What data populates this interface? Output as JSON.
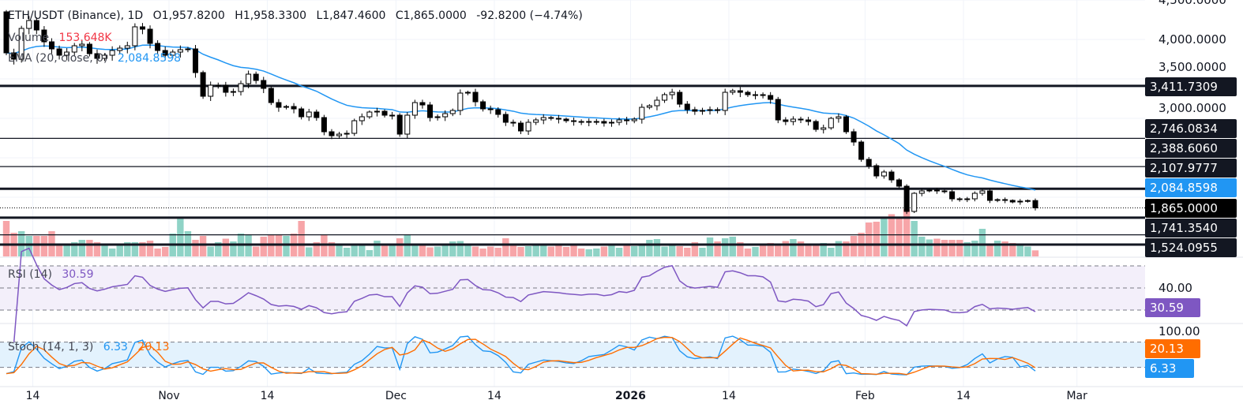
{
  "header": {
    "symbol": "ETH/USDT (Binance), 1D",
    "open": "O1,957.8200",
    "high": "H1,958.3300",
    "low": "L1,847.4600",
    "close": "C1,865.0000",
    "change": "-92.8200 (−4.74%)",
    "volume_label": "Volume",
    "volume_value": "153.648K",
    "ema_label": "EMA (20, close, 0)",
    "ema_value": "2,084.8598"
  },
  "colors": {
    "up": "#ffffff",
    "down": "#000000",
    "vol_up": "#8fd3c6",
    "vol_down": "#f7a5a8",
    "ema": "#2196f3",
    "rsi": "#7e57c2",
    "stoch_k": "#2196f3",
    "stoch_d": "#ff6d00",
    "tag": "#131722"
  },
  "price_axis": [
    "4,500.0000",
    "4,000.0000",
    "3,500.0000",
    "3,000.0000"
  ],
  "price_tags": [
    {
      "label": "3,411.7309",
      "kind": "level"
    },
    {
      "label": "2,746.0834",
      "kind": "level"
    },
    {
      "label": "2,388.6060",
      "kind": "level"
    },
    {
      "label": "2,107.9777",
      "kind": "level"
    },
    {
      "label": "2,084.8598",
      "kind": "ema"
    },
    {
      "label": "1,865.0000",
      "kind": "last"
    },
    {
      "label": "1,741.3540",
      "kind": "level"
    },
    {
      "label": "1,524.0955",
      "kind": "level"
    }
  ],
  "rsi": {
    "label": "RSI (14)",
    "value": "30.59",
    "axis": "40.00",
    "period": 14
  },
  "stoch": {
    "label": "Stoch (14, 1, 3)",
    "k_value": "6.33",
    "d_value": "20.13",
    "axis": "100.00"
  },
  "time_axis": [
    {
      "label": "14",
      "day": 4
    },
    {
      "label": "Nov",
      "day": 22
    },
    {
      "label": "14",
      "day": 35
    },
    {
      "label": "Dec",
      "day": 52
    },
    {
      "label": "14",
      "day": 65
    },
    {
      "label": "2026",
      "day": 83,
      "bold": true
    },
    {
      "label": "14",
      "day": 96
    },
    {
      "label": "Feb",
      "day": 114
    },
    {
      "label": "14",
      "day": 127
    },
    {
      "label": "Mar",
      "day": 142
    }
  ],
  "chart_data": {
    "type": "candlestick",
    "title": "ETH/USDT (Binance), 1D",
    "x_start": "2025-10-10",
    "x_end": "2026-02-23",
    "ylim": [
      1350,
      4500
    ],
    "first_open": 4350,
    "levels": [
      {
        "value": 3411.7309,
        "weight": "thick"
      },
      {
        "value": 2746.0834,
        "weight": "thin"
      },
      {
        "value": 2388.606,
        "weight": "thin"
      },
      {
        "value": 2107.9777,
        "weight": "thick"
      },
      {
        "value": 1741.354,
        "weight": "thick"
      },
      {
        "value": 1524.0955,
        "weight": "thin"
      },
      {
        "value": 1400,
        "weight": "thick"
      }
    ],
    "last_price": 1865.0,
    "ema_period": 20,
    "closes": [
      3830,
      3750,
      4140,
      4240,
      4120,
      3970,
      3880,
      3800,
      3840,
      3920,
      3940,
      3820,
      3760,
      3800,
      3860,
      3890,
      3920,
      4160,
      4130,
      3950,
      3860,
      3800,
      3840,
      3870,
      3880,
      3580,
      3280,
      3420,
      3420,
      3330,
      3340,
      3440,
      3560,
      3480,
      3380,
      3200,
      3140,
      3150,
      3120,
      3020,
      3080,
      3010,
      2830,
      2780,
      2800,
      2810,
      2970,
      3020,
      3080,
      3090,
      3040,
      3040,
      2800,
      3040,
      3200,
      3170,
      3010,
      3020,
      3060,
      3100,
      3320,
      3330,
      3210,
      3120,
      3110,
      3050,
      2950,
      2940,
      2840,
      2950,
      2980,
      3010,
      3000,
      2990,
      2970,
      2960,
      2950,
      2960,
      2960,
      2940,
      2950,
      2980,
      2970,
      2990,
      3140,
      3160,
      3230,
      3300,
      3330,
      3180,
      3110,
      3090,
      3100,
      3110,
      3100,
      3330,
      3350,
      3330,
      3300,
      3300,
      3290,
      3240,
      2980,
      2960,
      2990,
      2980,
      2960,
      2860,
      2880,
      3000,
      3020,
      2830,
      2700,
      2480,
      2400,
      2270,
      2320,
      2220,
      2140,
      1820,
      2050,
      2080,
      2090,
      2080,
      2070,
      1980,
      1970,
      1980,
      2050,
      2080,
      1960,
      1970,
      1960,
      1940,
      1950,
      1957.82,
      1865
    ],
    "volumes_k": [
      900,
      600,
      640,
      520,
      520,
      520,
      640,
      300,
      330,
      360,
      420,
      420,
      360,
      330,
      200,
      310,
      360,
      360,
      360,
      400,
      200,
      240,
      580,
      1000,
      640,
      420,
      520,
      250,
      360,
      450,
      380,
      580,
      540,
      250,
      500,
      560,
      560,
      520,
      580,
      900,
      230,
      360,
      560,
      360,
      300,
      220,
      330,
      280,
      160,
      400,
      300,
      320,
      460,
      560,
      300,
      280,
      230,
      250,
      300,
      380,
      390,
      300,
      250,
      200,
      250,
      220,
      460,
      300,
      240,
      260,
      300,
      280,
      250,
      320,
      240,
      280,
      200,
      180,
      200,
      250,
      300,
      220,
      300,
      260,
      300,
      420,
      440,
      250,
      330,
      260,
      220,
      360,
      220,
      480,
      380,
      460,
      500,
      360,
      200,
      240,
      330,
      340,
      300,
      390,
      440,
      380,
      330,
      300,
      340,
      220,
      390,
      380,
      520,
      600,
      860,
      880,
      1000,
      1070,
      1000,
      1200,
      900,
      500,
      430,
      450,
      420,
      420,
      420,
      360,
      400,
      700,
      280,
      400,
      380,
      340,
      280,
      250,
      153.648
    ],
    "rsi_levels": [
      70,
      50,
      30
    ],
    "stoch_levels": [
      80,
      20
    ]
  }
}
